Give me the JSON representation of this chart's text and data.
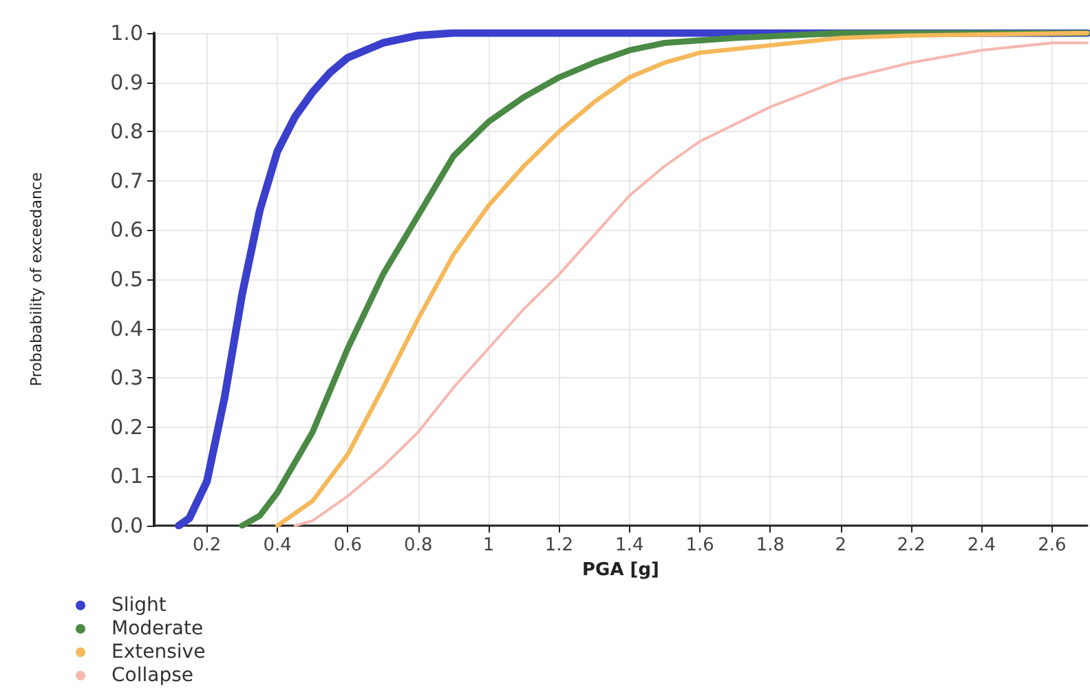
{
  "chart_data": {
    "type": "line",
    "xlabel": "PGA [g]",
    "ylabel": "Probabability of exceedance",
    "xlim": [
      0.05,
      2.7
    ],
    "xticks": [
      0.2,
      0.4,
      0.6,
      0.8,
      1,
      1.2,
      1.4,
      1.6,
      1.8,
      2,
      2.2,
      2.4,
      2.6
    ],
    "ylim": [
      0,
      1
    ],
    "yticks": [
      {
        "value": 0,
        "label": "0.0"
      },
      {
        "value": 0.1,
        "label": "0.1"
      },
      {
        "value": 0.2,
        "label": "0.2"
      },
      {
        "value": 0.3,
        "label": "0.3"
      },
      {
        "value": 0.4,
        "label": "0.4"
      },
      {
        "value": 0.5,
        "label": "0.5"
      },
      {
        "value": 0.6,
        "label": "0.6"
      },
      {
        "value": 0.7,
        "label": "0.7"
      },
      {
        "value": 0.8,
        "label": "0.8"
      },
      {
        "value": 0.9,
        "label": "0.9"
      },
      {
        "value": 1,
        "label": "1.0"
      }
    ],
    "grid": true,
    "legend": "bottom left",
    "marker": "none",
    "line_style": "solid",
    "series": [
      {
        "name": "Slight",
        "color": "#3a3fcc",
        "x": [
          0.12,
          0.15,
          0.2,
          0.25,
          0.3,
          0.35,
          0.4,
          0.45,
          0.5,
          0.55,
          0.6,
          0.7,
          0.8,
          0.9,
          1,
          1.5,
          2,
          2.7
        ],
        "values": [
          0,
          0.015,
          0.09,
          0.26,
          0.47,
          0.64,
          0.76,
          0.83,
          0.88,
          0.92,
          0.95,
          0.98,
          0.995,
          1,
          1,
          1,
          1,
          1
        ]
      },
      {
        "name": "Moderate",
        "color": "#4a8a45",
        "x": [
          0.3,
          0.35,
          0.4,
          0.5,
          0.6,
          0.7,
          0.8,
          0.9,
          1,
          1.1,
          1.2,
          1.3,
          1.4,
          1.5,
          1.7,
          2,
          2.7
        ],
        "values": [
          0,
          0.02,
          0.067,
          0.19,
          0.36,
          0.51,
          0.63,
          0.75,
          0.82,
          0.87,
          0.91,
          0.94,
          0.965,
          0.98,
          0.99,
          1,
          1
        ]
      },
      {
        "name": "Extensive",
        "color": "#f5b85a",
        "x": [
          0.4,
          0.5,
          0.6,
          0.7,
          0.8,
          0.9,
          1,
          1.1,
          1.2,
          1.3,
          1.4,
          1.5,
          1.6,
          1.8,
          2,
          2.2,
          2.7
        ],
        "values": [
          0,
          0.05,
          0.145,
          0.28,
          0.42,
          0.55,
          0.65,
          0.73,
          0.8,
          0.86,
          0.91,
          0.94,
          0.96,
          0.975,
          0.99,
          0.995,
          1
        ]
      },
      {
        "name": "Collapse",
        "color": "#f5b8b0",
        "x": [
          0.45,
          0.5,
          0.6,
          0.7,
          0.8,
          0.9,
          1,
          1.1,
          1.2,
          1.3,
          1.4,
          1.5,
          1.6,
          1.8,
          2,
          2.2,
          2.4,
          2.6,
          2.7
        ],
        "values": [
          0,
          0.01,
          0.06,
          0.12,
          0.19,
          0.28,
          0.36,
          0.44,
          0.51,
          0.59,
          0.67,
          0.73,
          0.78,
          0.85,
          0.905,
          0.94,
          0.965,
          0.98,
          0.98
        ]
      }
    ]
  }
}
